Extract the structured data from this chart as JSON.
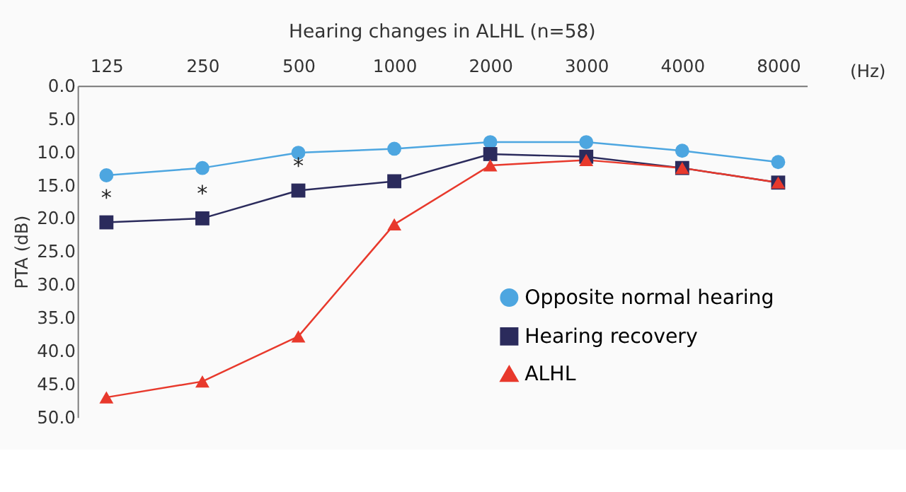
{
  "chart_data": {
    "type": "line",
    "title": "Hearing changes in ALHL (n=58)",
    "xlabel": "(Hz)",
    "ylabel": "PTA (dB)",
    "categories": [
      "125",
      "250",
      "500",
      "1000",
      "2000",
      "3000",
      "4000",
      "8000"
    ],
    "series": [
      {
        "name": "Opposite normal hearing",
        "color": "#4da6e0",
        "marker": "circle",
        "values": [
          13.5,
          12.4,
          10.1,
          9.5,
          8.5,
          8.5,
          9.8,
          11.5
        ]
      },
      {
        "name": "Hearing recovery",
        "color": "#2b2b5c",
        "marker": "square",
        "values": [
          20.6,
          20.0,
          15.8,
          14.4,
          10.3,
          10.7,
          12.4,
          14.6
        ]
      },
      {
        "name": "ALHL",
        "color": "#e8392c",
        "marker": "triangle",
        "values": [
          47.0,
          44.6,
          37.8,
          20.9,
          12.0,
          11.2,
          12.4,
          14.6
        ]
      }
    ],
    "ylim": [
      50,
      0
    ],
    "yticks": [
      {
        "value": 0,
        "label": "0.0"
      },
      {
        "value": 5,
        "label": "5.0"
      },
      {
        "value": 10,
        "label": "10.0"
      },
      {
        "value": 15,
        "label": "15.0"
      },
      {
        "value": 20,
        "label": "20.0"
      },
      {
        "value": 25,
        "label": "25.0"
      },
      {
        "value": 30,
        "label": "30.0"
      },
      {
        "value": 35,
        "label": "35.0"
      },
      {
        "value": 40,
        "label": "40.0"
      },
      {
        "value": 45,
        "label": "45.0"
      },
      {
        "value": 50,
        "label": "50.0"
      }
    ],
    "annotations": [
      {
        "text": "*",
        "x": "125",
        "y": 20.6
      },
      {
        "text": "*",
        "x": "250",
        "y": 20.0
      },
      {
        "text": "*",
        "x": "500",
        "y": 15.8
      }
    ],
    "grid": false,
    "legend": "bottom right",
    "line_style": "solid"
  }
}
